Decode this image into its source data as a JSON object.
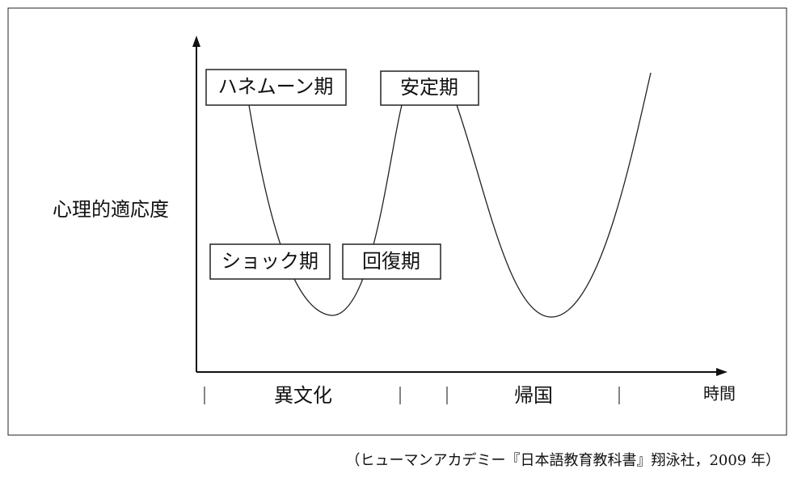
{
  "diagram": {
    "y_axis_label": "心理的適応度",
    "x_axis_label": "時間",
    "phases": [
      "ハネムーン期",
      "安定期",
      "ショック期",
      "回復期"
    ],
    "periods": [
      "異文化",
      "帰国"
    ],
    "caption": "（ヒューマンアカデミー『日本語教育教科書』翔泳社，2009 年）"
  }
}
